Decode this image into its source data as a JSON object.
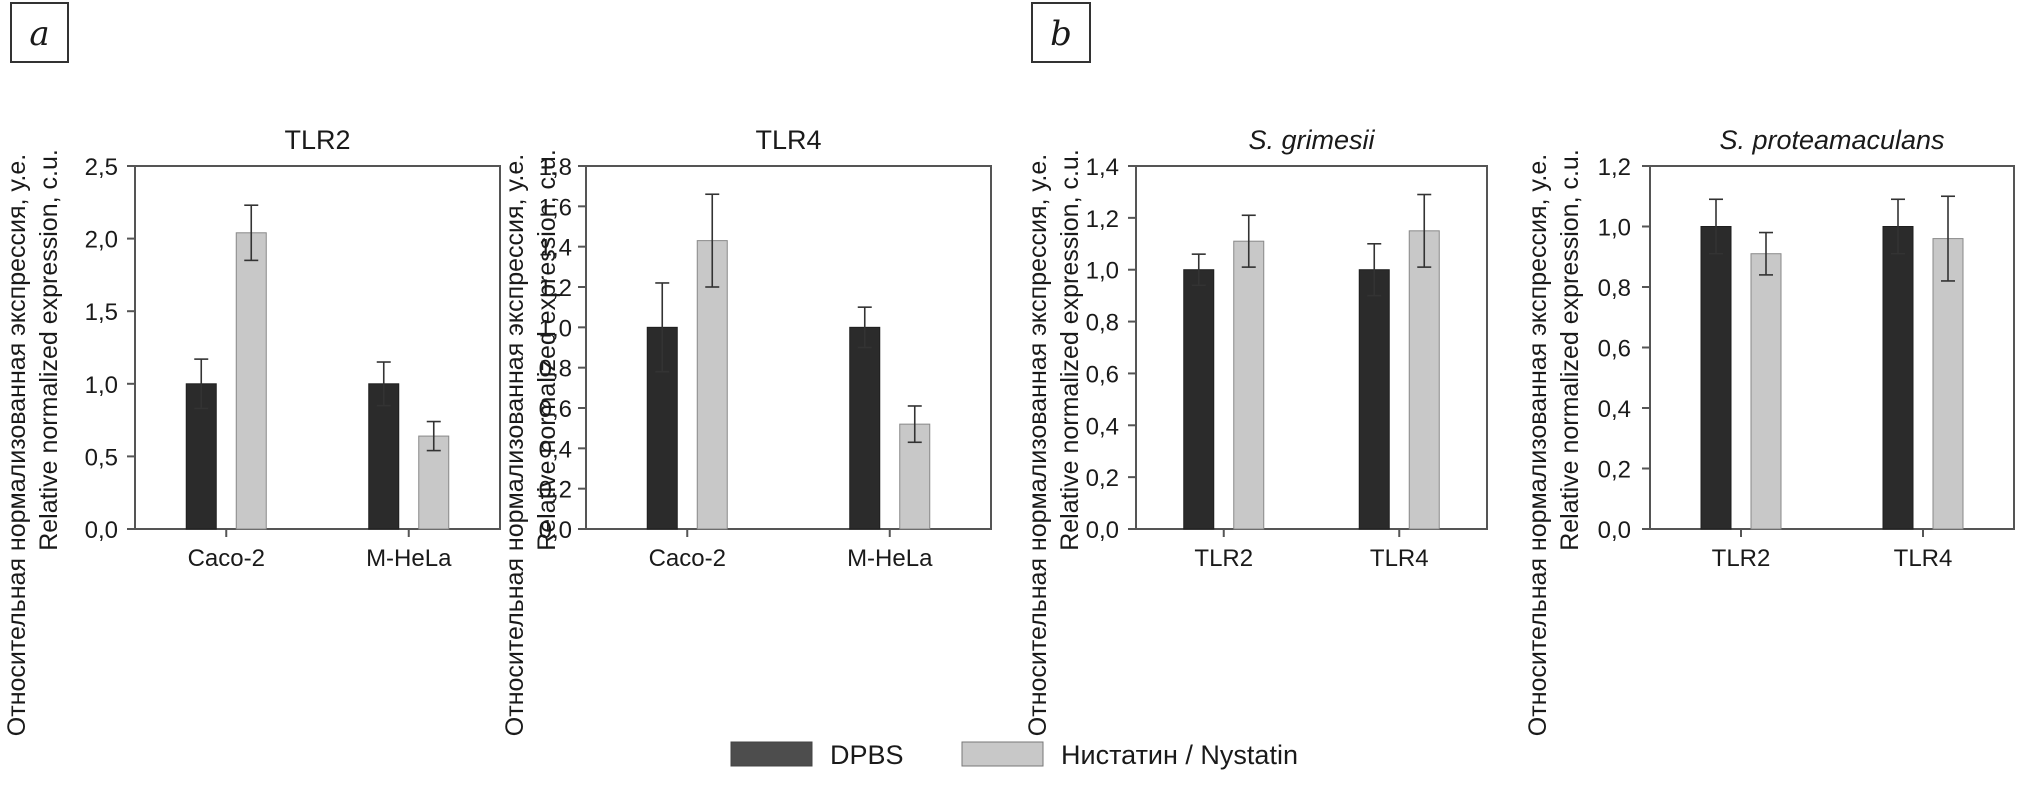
{
  "colors": {
    "dpbs": "#2b2b2b",
    "nystatin": "#c8c8c8",
    "axis": "#555555",
    "error": "#333333"
  },
  "panels": [
    {
      "label": "a"
    },
    {
      "label": "b"
    }
  ],
  "legend": {
    "items": [
      {
        "label": "DPBS",
        "color": "#4d4d4d"
      },
      {
        "label": "Нистатин / Nystatin",
        "color": "#c8c8c8"
      }
    ]
  },
  "chart_data": [
    {
      "type": "bar",
      "title": "TLR2",
      "title_italic": false,
      "ylabel_ru": "Относительная нормализованная экспрессия, у.е.",
      "ylabel_en": "Relative normalized expression, c.u.",
      "categories": [
        "Caco-2",
        "M-HeLa"
      ],
      "ylim": [
        0,
        2.5
      ],
      "yticks": [
        "0,0",
        "0,5",
        "1,0",
        "1,5",
        "2,0",
        "2,5"
      ],
      "series": [
        {
          "name": "DPBS",
          "values": [
            1.0,
            1.0
          ],
          "errors": [
            0.17,
            0.15
          ]
        },
        {
          "name": "Нистатин / Nystatin",
          "values": [
            2.04,
            0.64
          ],
          "errors": [
            0.19,
            0.1
          ]
        }
      ]
    },
    {
      "type": "bar",
      "title": "TLR4",
      "title_italic": false,
      "ylabel_ru": "Относительная нормализованная экспрессия, у.е.",
      "ylabel_en": "Relative normalized expression, c.u.",
      "categories": [
        "Caco-2",
        "M-HeLa"
      ],
      "ylim": [
        0,
        1.8
      ],
      "yticks": [
        "0,0",
        "0,2",
        "0,4",
        "0,6",
        "0,8",
        "1,0",
        "1,2",
        "1,4",
        "1,6",
        "1,8"
      ],
      "series": [
        {
          "name": "DPBS",
          "values": [
            1.0,
            1.0
          ],
          "errors": [
            0.22,
            0.1
          ]
        },
        {
          "name": "Нистатин / Nystatin",
          "values": [
            1.43,
            0.52
          ],
          "errors": [
            0.23,
            0.09
          ]
        }
      ]
    },
    {
      "type": "bar",
      "title": "S. grimesii",
      "title_italic": true,
      "ylabel_ru": "Относительная нормализованная экспрессия, у.е.",
      "ylabel_en": "Relative normalized expression, c.u.",
      "categories": [
        "TLR2",
        "TLR4"
      ],
      "ylim": [
        0,
        1.4
      ],
      "yticks": [
        "0,0",
        "0,2",
        "0,4",
        "0,6",
        "0,8",
        "1,0",
        "1,2",
        "1,4"
      ],
      "series": [
        {
          "name": "DPBS",
          "values": [
            1.0,
            1.0
          ],
          "errors": [
            0.06,
            0.1
          ]
        },
        {
          "name": "Нистатин / Nystatin",
          "values": [
            1.11,
            1.15
          ],
          "errors": [
            0.1,
            0.14
          ]
        }
      ]
    },
    {
      "type": "bar",
      "title": "S. proteamaculans",
      "title_italic": true,
      "ylabel_ru": "Относительная нормализованная экспрессия, у.е.",
      "ylabel_en": "Relative normalized expression, c.u.",
      "categories": [
        "TLR2",
        "TLR4"
      ],
      "ylim": [
        0,
        1.2
      ],
      "yticks": [
        "0,0",
        "0,2",
        "0,4",
        "0,6",
        "0,8",
        "1,0",
        "1,2"
      ],
      "series": [
        {
          "name": "DPBS",
          "values": [
            1.0,
            1.0
          ],
          "errors": [
            0.09,
            0.09
          ]
        },
        {
          "name": "Нистатин / Nystatin",
          "values": [
            0.91,
            0.96
          ],
          "errors": [
            0.07,
            0.14
          ]
        }
      ]
    }
  ]
}
